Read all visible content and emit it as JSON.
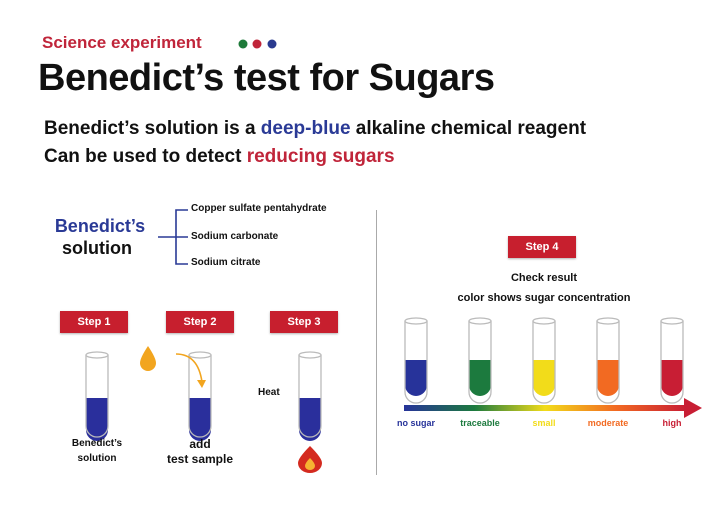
{
  "header": {
    "kicker": "Science experiment",
    "kicker_color": "#c0253a",
    "dots": [
      "#1e7a3a",
      "#c0253a",
      "#2a3a8f"
    ],
    "title": "Benedict’s test for Sugars"
  },
  "intro": {
    "line1_pre": "Benedict’s solution is a ",
    "line1_highlight": "deep-blue",
    "line1_post": " alkaline chemical reagent",
    "line2_pre": "Can be used to detect ",
    "line2_highlight": "reducing sugars"
  },
  "solution": {
    "name_line1": "Benedict’s",
    "name_line2": "solution",
    "components": [
      "Copper sulfate pentahydrate",
      "Sodium carbonate",
      "Sodium citrate"
    ]
  },
  "steps": [
    {
      "label": "Step 1",
      "caption1": "Benedict’s",
      "caption2": "solution"
    },
    {
      "label": "Step 2",
      "caption1": "add",
      "caption2": "test sample"
    },
    {
      "label": "Step 3",
      "side_label": "Heat"
    }
  ],
  "step4": {
    "label": "Step 4",
    "title": "Check result",
    "subtitle": "color shows sugar concentration",
    "results": [
      {
        "label": "no sugar",
        "color": "#27339a"
      },
      {
        "label": "traceable",
        "color": "#1c7a3e"
      },
      {
        "label": "small",
        "color": "#f2dc1a"
      },
      {
        "label": "moderate",
        "color": "#f26a22"
      },
      {
        "label": "high",
        "color": "#c81e34"
      }
    ]
  },
  "colors": {
    "step_button": "#c71f2e",
    "benedict_blue": "#2a3a96"
  }
}
